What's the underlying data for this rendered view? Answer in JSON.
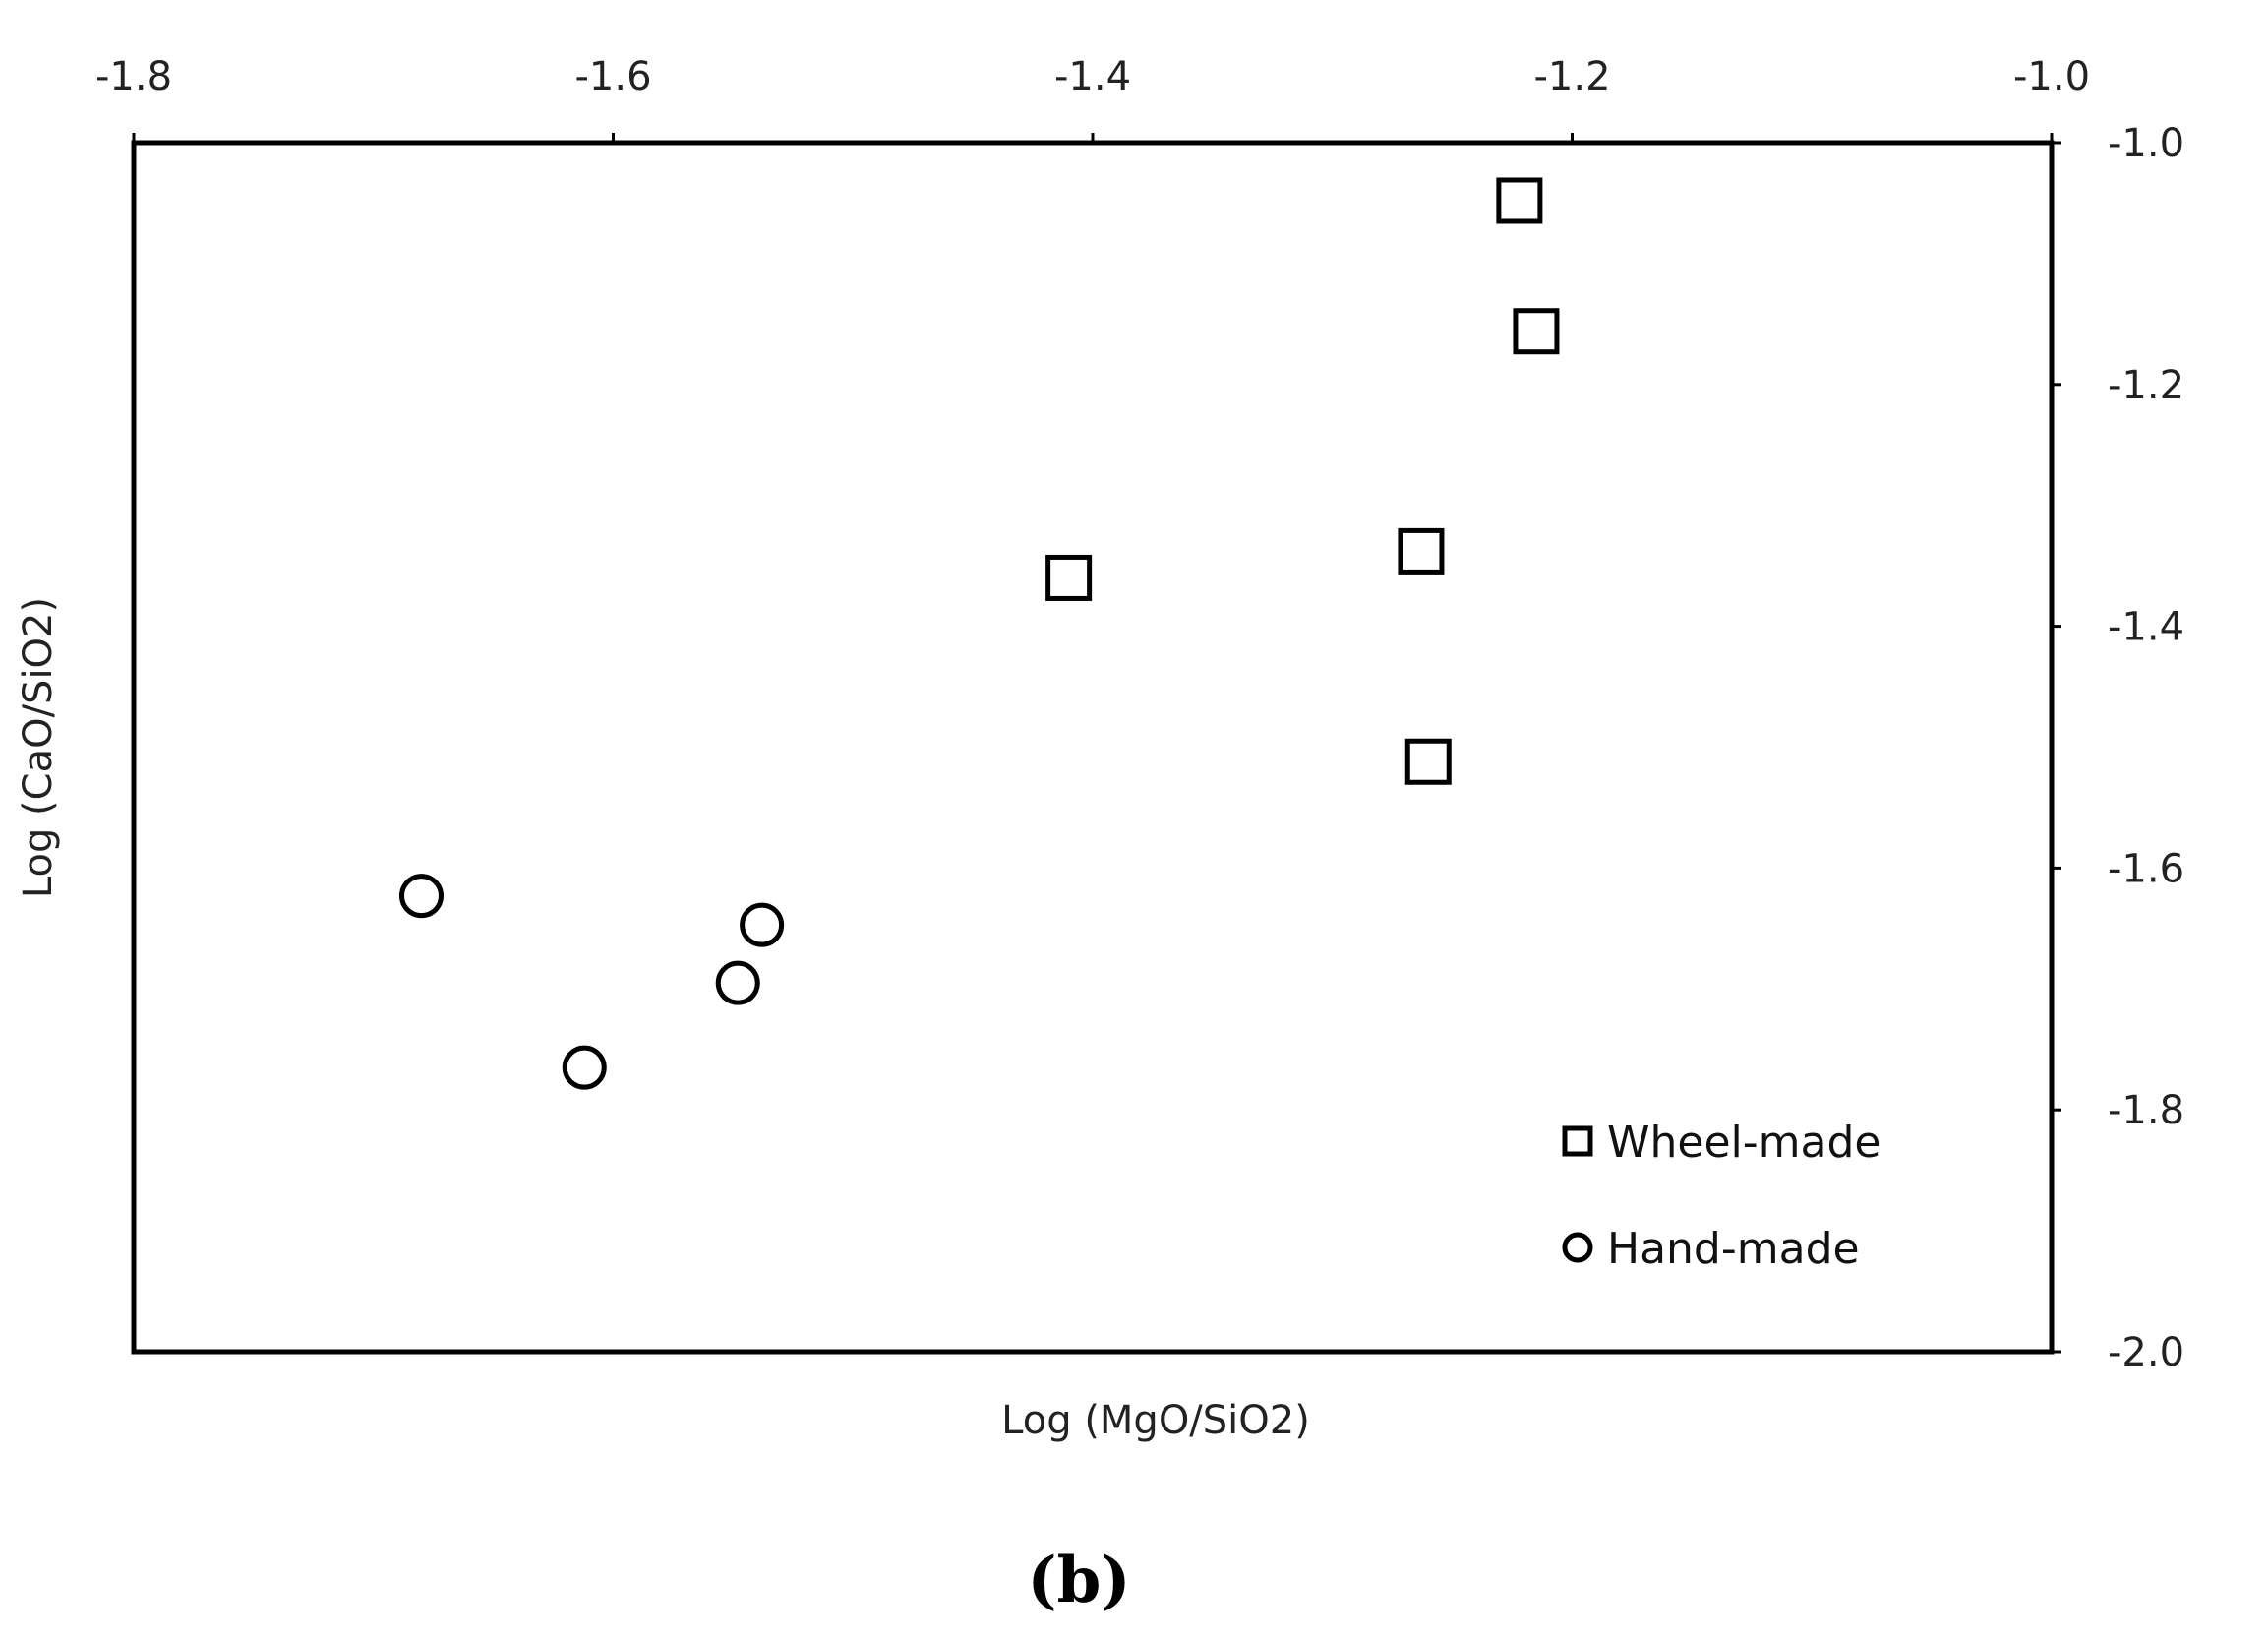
{
  "chart_data": {
    "type": "scatter",
    "title": "",
    "xlabel": "Log (MgO/SiO2)",
    "ylabel": "Log (CaO/SiO2)",
    "xlim": [
      -1.8,
      -1.0
    ],
    "ylim": [
      -2.0,
      -1.0
    ],
    "xticks": [
      "-1.8",
      "-1.6",
      "-1.4",
      "-1.2",
      "-1.0"
    ],
    "yticks": [
      "-1.0",
      "-1.2",
      "-1.4",
      "-1.6",
      "-1.8",
      "-2.0"
    ],
    "x_axis_position": "top",
    "y_axis_position": "right",
    "grid": false,
    "legend_position": "bottom-right",
    "panel_label": "(b)",
    "series": [
      {
        "name": "Wheel-made",
        "marker": "square",
        "points": [
          {
            "x": -1.222,
            "y": -1.048
          },
          {
            "x": -1.215,
            "y": -1.156
          },
          {
            "x": -1.41,
            "y": -1.36
          },
          {
            "x": -1.263,
            "y": -1.338
          },
          {
            "x": -1.26,
            "y": -1.512
          }
        ]
      },
      {
        "name": "Hand-made",
        "marker": "circle",
        "points": [
          {
            "x": -1.68,
            "y": -1.623
          },
          {
            "x": -1.538,
            "y": -1.647
          },
          {
            "x": -1.548,
            "y": -1.695
          },
          {
            "x": -1.612,
            "y": -1.765
          }
        ]
      }
    ]
  },
  "colors": {
    "axis": "#000000",
    "marker_stroke": "#000000",
    "marker_fill": "#ffffff",
    "text": "#222222"
  }
}
